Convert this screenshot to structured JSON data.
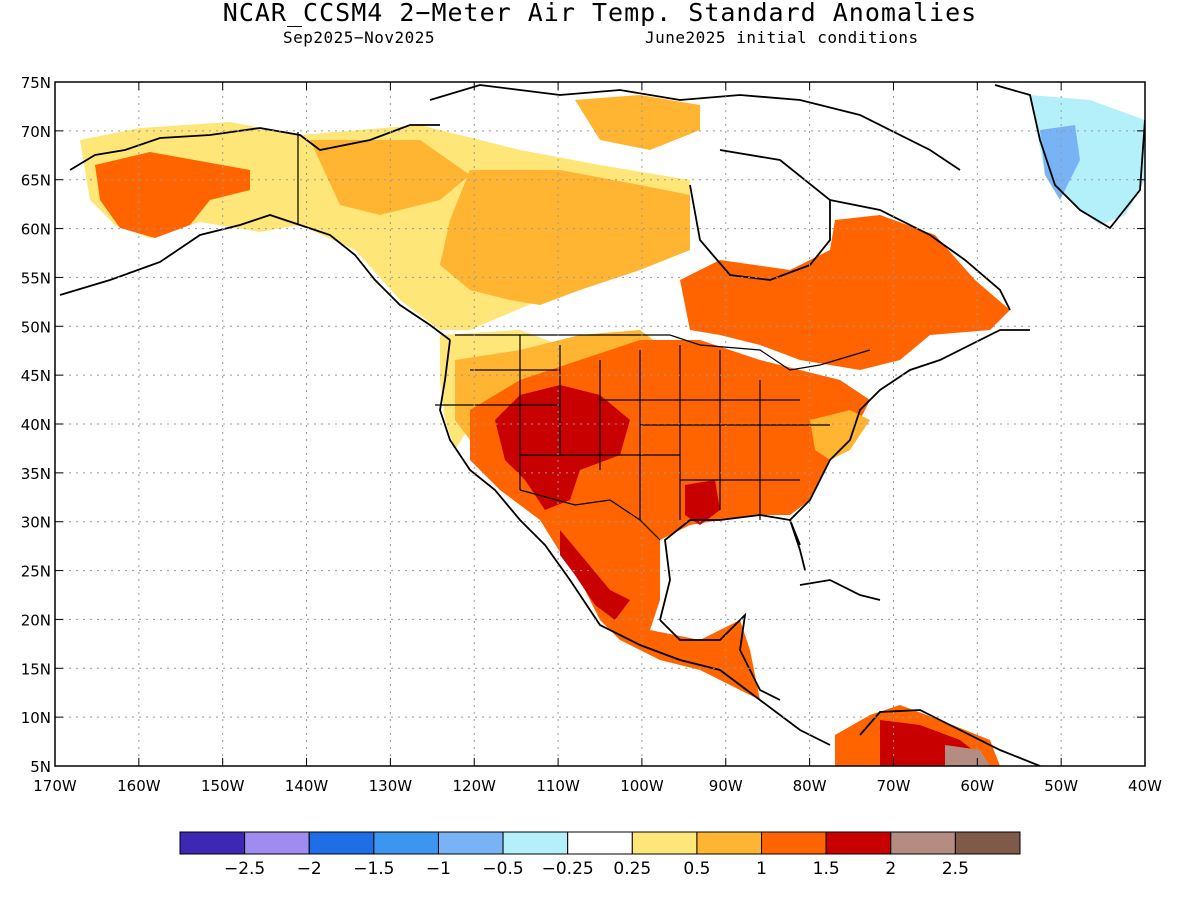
{
  "title": "NCAR_CCSM4 2−Meter Air Temp. Standard Anomalies",
  "subtitle_left": "Sep2025−Nov2025",
  "subtitle_right": "June2025 initial conditions",
  "axes": {
    "lat_labels": [
      "75N",
      "70N",
      "65N",
      "60N",
      "55N",
      "50N",
      "45N",
      "40N",
      "35N",
      "30N",
      "25N",
      "20N",
      "15N",
      "10N",
      "5N"
    ],
    "lon_labels": [
      "170W",
      "160W",
      "150W",
      "140W",
      "130W",
      "120W",
      "110W",
      "100W",
      "90W",
      "80W",
      "70W",
      "60W",
      "50W",
      "40W"
    ]
  },
  "colorbar": {
    "colors": [
      "#3c28b4",
      "#a08cf0",
      "#1e6ee6",
      "#3c96f0",
      "#78b4f5",
      "#b4f0fa",
      "#ffffff",
      "#ffe678",
      "#ffb432",
      "#ff6400",
      "#c80000",
      "#b48c82",
      "#7f5a4b"
    ],
    "labels": [
      "−2.5",
      "−2",
      "−1.5",
      "−1",
      "−0.5",
      "−0.25",
      "0.25",
      "0.5",
      "1",
      "1.5",
      "2",
      "2.5"
    ]
  },
  "regions": [
    {
      "name": "alaska",
      "level": "1.5",
      "color": "#ff6400"
    },
    {
      "name": "western-canada",
      "level": "0.5",
      "color": "#ffe678"
    },
    {
      "name": "southwest-us",
      "level": "2",
      "color": "#c80000"
    },
    {
      "name": "eastern-us",
      "level": "1.5",
      "color": "#ff6400"
    },
    {
      "name": "greenland",
      "level": "-0.5",
      "color": "#b4f0fa"
    }
  ]
}
